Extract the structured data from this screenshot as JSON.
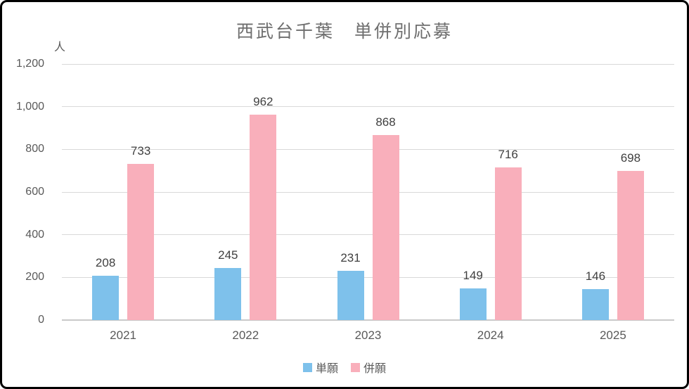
{
  "window": {
    "background": "#ffffff",
    "frame_border_color": "#000000"
  },
  "chart_data": {
    "type": "bar",
    "title": "西武台千葉　単併別応募",
    "unit_label": "人",
    "categories": [
      "2021",
      "2022",
      "2023",
      "2024",
      "2025"
    ],
    "series": [
      {
        "name": "単願",
        "color": "#7EC1EB",
        "values": [
          208,
          245,
          231,
          149,
          146
        ]
      },
      {
        "name": "併願",
        "color": "#F9AFBB",
        "values": [
          733,
          962,
          868,
          716,
          698
        ]
      }
    ],
    "ylim": [
      0,
      1200
    ],
    "ytick_step": 200,
    "ytick_labels": [
      "0",
      "200",
      "400",
      "600",
      "800",
      "1,000",
      "1,200"
    ],
    "grid": true,
    "data_labels": true,
    "legend_position": "bottom"
  },
  "colors": {
    "gridline": "#D9D9D9",
    "axis_line": "#C9C9C9",
    "tick_text": "#595959",
    "category_text": "#595959",
    "data_label_text": "#404040",
    "title_text": "#6E6E6E",
    "legend_text": "#595959"
  }
}
